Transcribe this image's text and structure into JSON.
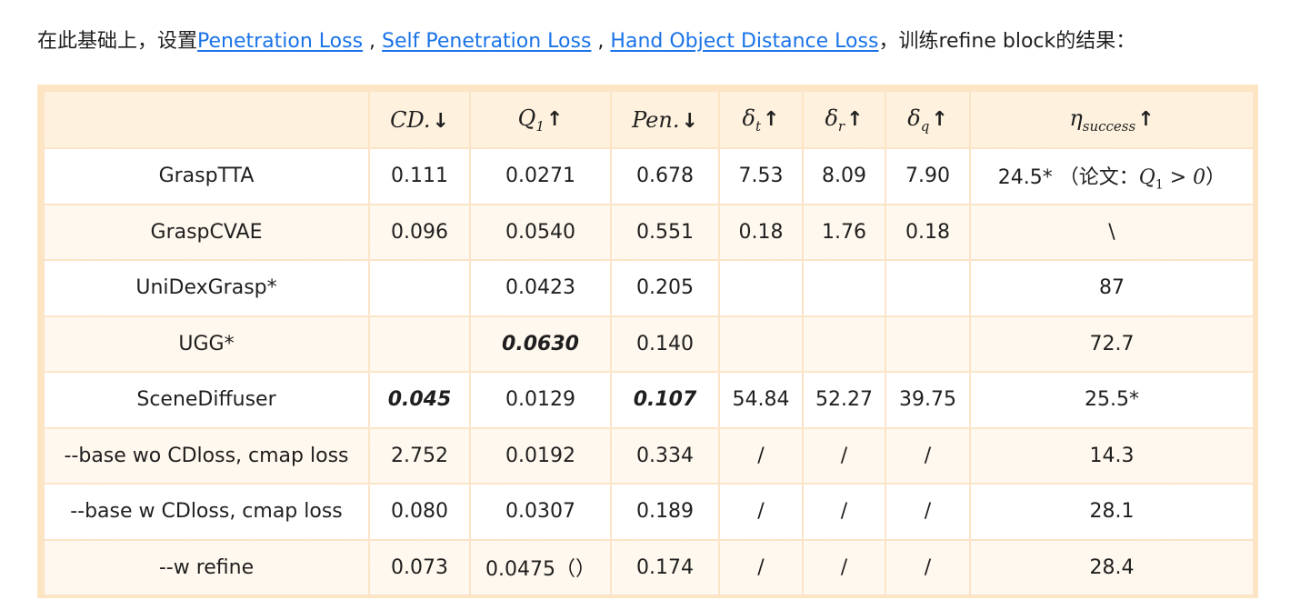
{
  "intro": {
    "prefix": "在此基础上，设置",
    "link1": "Penetration Loss",
    "sep1": " , ",
    "link2": "Self Penetration Loss",
    "sep2": " , ",
    "link3": "Hand Object Distance Loss",
    "suffix": "，训练refine block的结果："
  },
  "table": {
    "headers": {
      "cd": "CD.",
      "q1": "Q",
      "q1_sub": "1",
      "pen": "Pen.",
      "dt": "δ",
      "dt_sub": "t",
      "dr": "δ",
      "dr_sub": "r",
      "dq": "δ",
      "dq_sub": "q",
      "eta": "η",
      "eta_sub": "success",
      "arrow_down": "↓",
      "arrow_up": "↑"
    },
    "rows": [
      {
        "name": "GraspTTA",
        "cd": "0.111",
        "q1": "0.0271",
        "pen": "0.678",
        "dt": "7.53",
        "dr": "8.09",
        "dq": "7.90",
        "eta": "24.5* （论文：",
        "eta_math": "Q",
        "eta_math_sub": "1",
        "eta_math_tail": " > 0",
        "eta_close": "）"
      },
      {
        "name": "GraspCVAE",
        "cd": "0.096",
        "q1": "0.0540",
        "pen": "0.551",
        "dt": "0.18",
        "dr": "1.76",
        "dq": "0.18",
        "eta": "\\"
      },
      {
        "name": "UniDexGrasp*",
        "cd": "",
        "q1": "0.0423",
        "pen": "0.205",
        "dt": "",
        "dr": "",
        "dq": "",
        "eta": "87"
      },
      {
        "name": "UGG*",
        "cd": "",
        "q1": "0.0630",
        "pen": "0.140",
        "dt": "",
        "dr": "",
        "dq": "",
        "eta": "72.7"
      },
      {
        "name": "SceneDiffuser",
        "cd": "0.045",
        "q1": "0.0129",
        "pen": "0.107",
        "dt": "54.84",
        "dr": "52.27",
        "dq": "39.75",
        "eta": "25.5*"
      },
      {
        "name": "--base wo CDloss, cmap loss",
        "cd": "2.752",
        "q1": "0.0192",
        "pen": "0.334",
        "dt": "/",
        "dr": "/",
        "dq": "/",
        "eta": "14.3"
      },
      {
        "name": "--base w CDloss, cmap loss",
        "cd": "0.080",
        "q1": "0.0307",
        "pen": "0.189",
        "dt": "/",
        "dr": "/",
        "dq": "/",
        "eta": "28.1"
      },
      {
        "name": "--w refine",
        "cd": "0.073",
        "q1": "0.0475（）",
        "pen": "0.174",
        "dt": "/",
        "dr": "/",
        "dq": "/",
        "eta": "28.4"
      }
    ]
  }
}
